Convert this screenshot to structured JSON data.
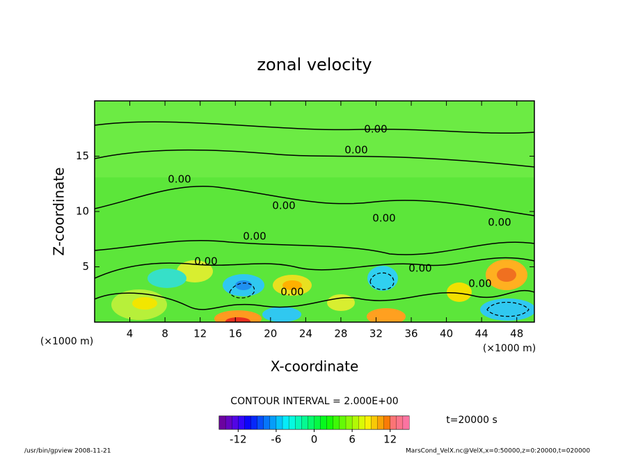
{
  "chart_data": {
    "type": "contour",
    "title": "zonal velocity",
    "x_label": "X-coordinate",
    "y_label": "Z-coordinate",
    "x_unit": "(×1000 m)",
    "y_unit": "(×1000 m)",
    "xlim": [
      0,
      50
    ],
    "xticks": [
      4,
      8,
      12,
      16,
      20,
      24,
      28,
      32,
      36,
      40,
      44,
      48
    ],
    "ylim": [
      0,
      20
    ],
    "yticks": [
      5,
      10,
      15
    ],
    "contour_labels": [
      "0.00",
      "0.00",
      "0.00",
      "0.00",
      "0.00",
      "0.00",
      "0.00",
      "0.00",
      "0.00",
      "0.00",
      "0.00"
    ],
    "contour_interval": "CONTOUR INTERVAL = 2.000E+00",
    "time": "t=20000 s",
    "colorbar_lim": [
      -15,
      15
    ],
    "colorbar_ticks": [
      -12,
      -6,
      0,
      6,
      12
    ],
    "footer_left": "/usr/bin/gpview   2008-11-21",
    "footer_right": "MarsCond_VelX.nc@VelX,x=0:50000,z=0:20000,t=020000"
  }
}
